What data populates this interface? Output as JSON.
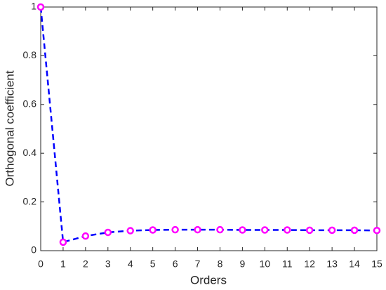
{
  "chart_data": {
    "type": "line",
    "x_label": "Orders",
    "y_label": "Orthogonal coefficient",
    "x": [
      0,
      1,
      2,
      3,
      4,
      5,
      6,
      7,
      8,
      9,
      10,
      11,
      12,
      13,
      14,
      15
    ],
    "values": [
      1,
      0.035,
      0.06,
      0.075,
      0.082,
      0.085,
      0.086,
      0.086,
      0.086,
      0.085,
      0.085,
      0.085,
      0.084,
      0.084,
      0.084,
      0.083
    ],
    "color": "#0000ff",
    "marker_color": "#ff00ff",
    "xlim": [
      0,
      15
    ],
    "xticks": [
      0,
      1,
      2,
      3,
      4,
      5,
      6,
      7,
      8,
      9,
      10,
      11,
      12,
      13,
      14,
      15
    ],
    "ylim": [
      0,
      1
    ],
    "yticks": [
      0,
      0.2,
      0.4,
      0.6,
      0.8,
      1
    ],
    "grid": false
  }
}
